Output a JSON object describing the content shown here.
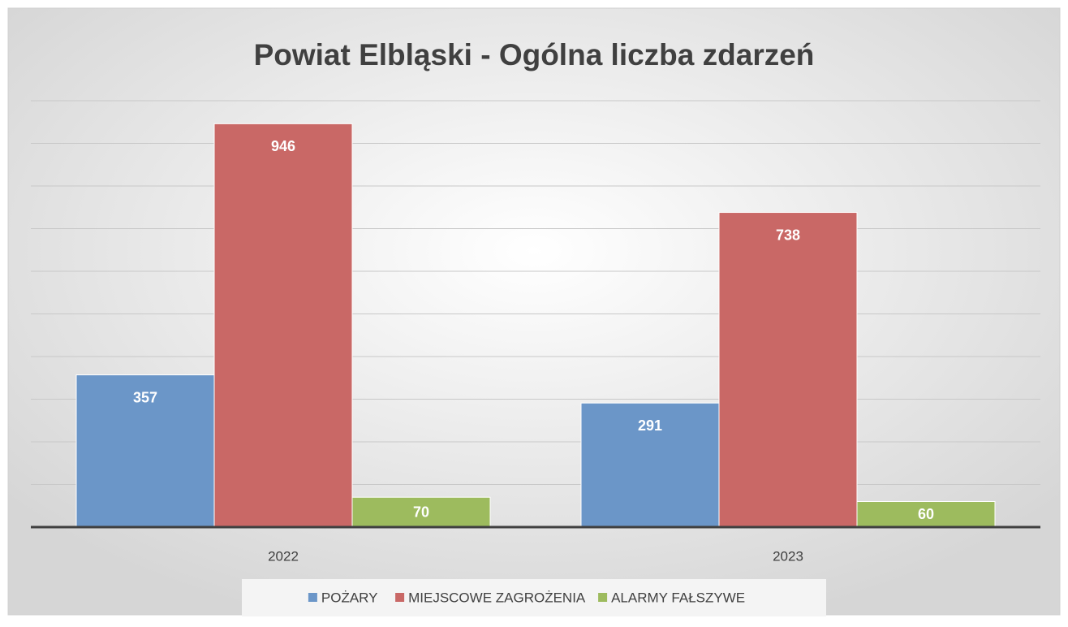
{
  "chart_data": {
    "type": "bar",
    "title": "Powiat Elbląski - Ogólna liczba zdarzeń",
    "categories": [
      "2022",
      "2023"
    ],
    "series": [
      {
        "name": "POŻARY",
        "color": "#6b96c8",
        "values": [
          357,
          291
        ]
      },
      {
        "name": "MIEJSCOWE ZAGROŻENIA",
        "color": "#c96866",
        "values": [
          946,
          738
        ]
      },
      {
        "name": "ALARMY FAŁSZYWE",
        "color": "#9dbb5e",
        "values": [
          70,
          60
        ]
      }
    ],
    "ylim": [
      0,
      1000
    ],
    "yticks": [
      0,
      100,
      200,
      300,
      400,
      500,
      600,
      700,
      800,
      900,
      1000
    ],
    "grid": true,
    "legend": "bottom"
  }
}
